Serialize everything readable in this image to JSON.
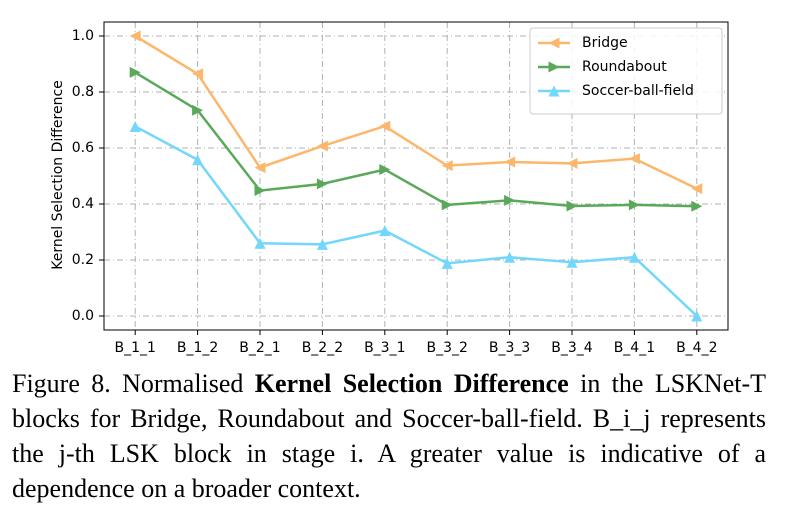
{
  "chart_data": {
    "type": "line",
    "y_label": "Kernel Selection Difference",
    "categories": [
      "B_1_1",
      "B_1_2",
      "B_2_1",
      "B_2_2",
      "B_3_1",
      "B_3_2",
      "B_3_3",
      "B_3_4",
      "B_4_1",
      "B_4_2"
    ],
    "series": [
      {
        "name": "Bridge",
        "color": "#fbb86c",
        "marker": "triangle-left",
        "values": [
          1.0,
          0.865,
          0.53,
          0.607,
          0.678,
          0.537,
          0.55,
          0.545,
          0.562,
          0.455
        ]
      },
      {
        "name": "Roundabout",
        "color": "#5aa95a",
        "marker": "triangle-right",
        "values": [
          0.87,
          0.735,
          0.448,
          0.472,
          0.523,
          0.397,
          0.413,
          0.393,
          0.397,
          0.392
        ]
      },
      {
        "name": "Soccer-ball-field",
        "color": "#72d7fa",
        "marker": "triangle-up",
        "values": [
          0.677,
          0.558,
          0.26,
          0.256,
          0.305,
          0.188,
          0.21,
          0.192,
          0.21,
          0.0
        ]
      }
    ],
    "ylim": [
      -0.05,
      1.05
    ],
    "yticks": [
      {
        "value": 0,
        "label": "0.0"
      },
      0.2,
      0.4,
      0.6,
      0.8,
      {
        "value": 1,
        "label": "1.0"
      }
    ],
    "grid": true,
    "legend": "upper right"
  },
  "caption": {
    "prefix": "Figure 8. Normalised",
    "bold": "Kernel Selection Difference",
    "rest": "in the LSKNet-T blocks for Bridge, Roundabout and Soccer-ball-field. B_i_j represents the j-th LSK block in stage i. A greater value is indicative of a dependence on a broader context."
  }
}
